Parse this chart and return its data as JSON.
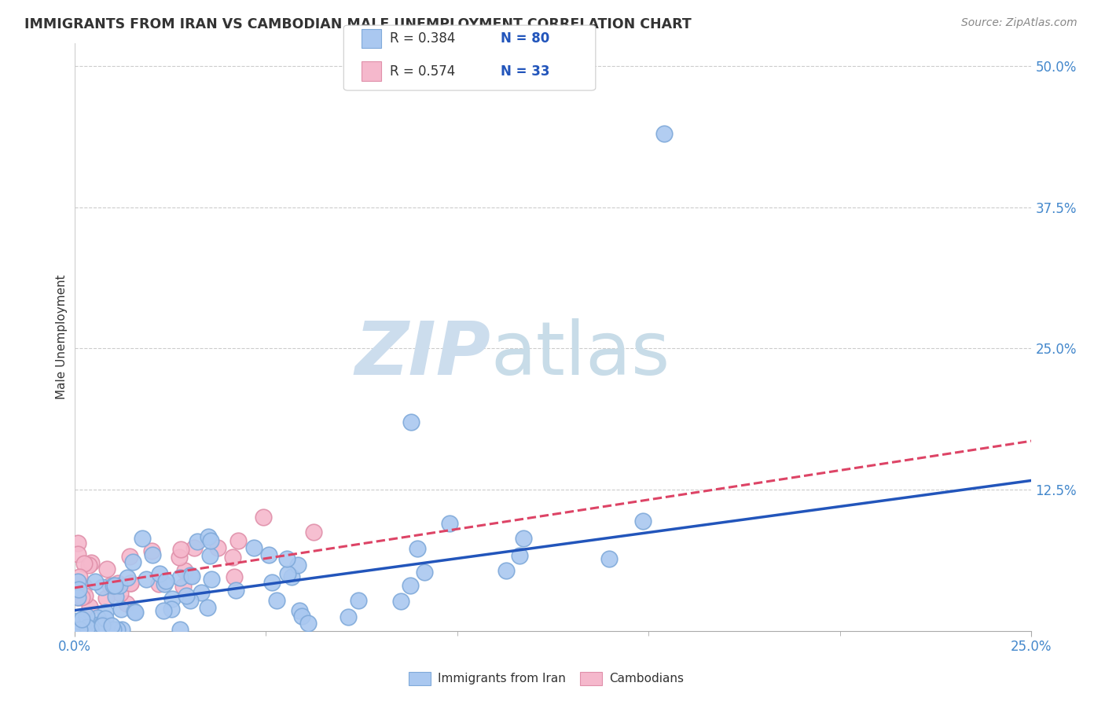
{
  "title": "IMMIGRANTS FROM IRAN VS CAMBODIAN MALE UNEMPLOYMENT CORRELATION CHART",
  "source": "Source: ZipAtlas.com",
  "ylabel": "Male Unemployment",
  "xlim": [
    0.0,
    0.25
  ],
  "ylim": [
    0.0,
    0.52
  ],
  "ytick_vals": [
    0.125,
    0.25,
    0.375,
    0.5
  ],
  "ytick_labels": [
    "12.5%",
    "25.0%",
    "37.5%",
    "50.0%"
  ],
  "xtick_vals": [
    0.0,
    0.25
  ],
  "xtick_labels": [
    "0.0%",
    "25.0%"
  ],
  "legend_bottom1": "Immigrants from Iran",
  "legend_bottom2": "Cambodians",
  "iran_color": "#aac8f0",
  "iran_edge_color": "#80aada",
  "cambodian_color": "#f5b8cc",
  "cambodian_edge_color": "#e090aa",
  "iran_line_color": "#2255bb",
  "cambodian_line_color": "#dd4466",
  "iran_line_slope": 0.46,
  "iran_line_intercept": 0.018,
  "cambodian_line_slope": 0.52,
  "cambodian_line_intercept": 0.038,
  "iran_N": 80,
  "cambodian_N": 33,
  "iran_R": 0.384,
  "cambodian_R": 0.574,
  "watermark_zip": "ZIP",
  "watermark_atlas": "atlas",
  "grid_color": "#cccccc",
  "tick_color": "#4488cc",
  "label_color": "#333333",
  "source_color": "#888888"
}
